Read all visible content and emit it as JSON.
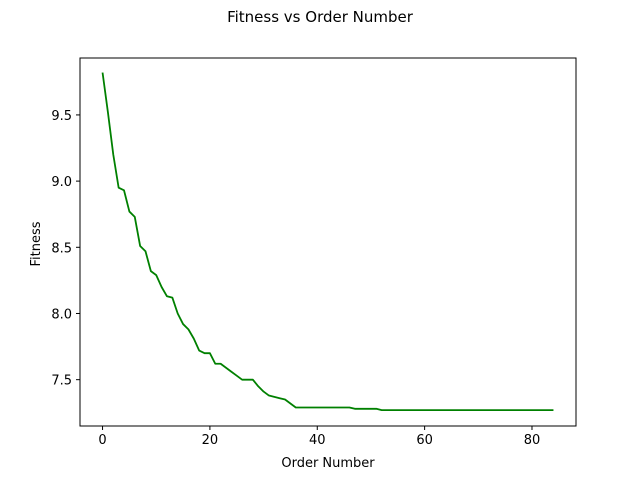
{
  "chart_data": {
    "type": "line",
    "title": "Fitness vs Order Number",
    "xlabel": "Order Number",
    "ylabel": "Fitness",
    "xlim": [
      -4.2,
      88.2
    ],
    "ylim": [
      7.15,
      9.93
    ],
    "xticks": [
      0,
      20,
      40,
      60,
      80
    ],
    "yticks": [
      7.5,
      8.0,
      8.5,
      9.0,
      9.5
    ],
    "ytick_labels": [
      "7.5",
      "8.0",
      "8.5",
      "9.0",
      "9.5"
    ],
    "grid": false,
    "series": [
      {
        "color": "#008000",
        "x": [
          0,
          1,
          2,
          3,
          4,
          5,
          6,
          7,
          8,
          9,
          10,
          11,
          12,
          13,
          14,
          15,
          16,
          17,
          18,
          19,
          20,
          21,
          22,
          23,
          24,
          25,
          26,
          27,
          28,
          29,
          30,
          31,
          32,
          33,
          34,
          35,
          36,
          37,
          38,
          39,
          40,
          41,
          42,
          43,
          44,
          45,
          46,
          47,
          48,
          49,
          50,
          51,
          52,
          53,
          54,
          55,
          56,
          57,
          58,
          59,
          60,
          61,
          62,
          63,
          64,
          65,
          66,
          67,
          68,
          69,
          70,
          71,
          72,
          73,
          74,
          75,
          76,
          77,
          78,
          79,
          80,
          81,
          82,
          83,
          84
        ],
        "y": [
          9.82,
          9.52,
          9.2,
          8.95,
          8.93,
          8.77,
          8.73,
          8.51,
          8.47,
          8.32,
          8.29,
          8.2,
          8.13,
          8.12,
          8.0,
          7.92,
          7.88,
          7.81,
          7.72,
          7.7,
          7.7,
          7.62,
          7.62,
          7.59,
          7.56,
          7.53,
          7.5,
          7.5,
          7.5,
          7.45,
          7.41,
          7.38,
          7.37,
          7.36,
          7.35,
          7.32,
          7.29,
          7.29,
          7.29,
          7.29,
          7.29,
          7.29,
          7.29,
          7.29,
          7.29,
          7.29,
          7.29,
          7.28,
          7.28,
          7.28,
          7.28,
          7.28,
          7.27,
          7.27,
          7.27,
          7.27,
          7.27,
          7.27,
          7.27,
          7.27,
          7.27,
          7.27,
          7.27,
          7.27,
          7.27,
          7.27,
          7.27,
          7.27,
          7.27,
          7.27,
          7.27,
          7.27,
          7.27,
          7.27,
          7.27,
          7.27,
          7.27,
          7.27,
          7.27,
          7.27,
          7.27,
          7.27,
          7.27,
          7.27,
          7.27
        ]
      }
    ]
  }
}
